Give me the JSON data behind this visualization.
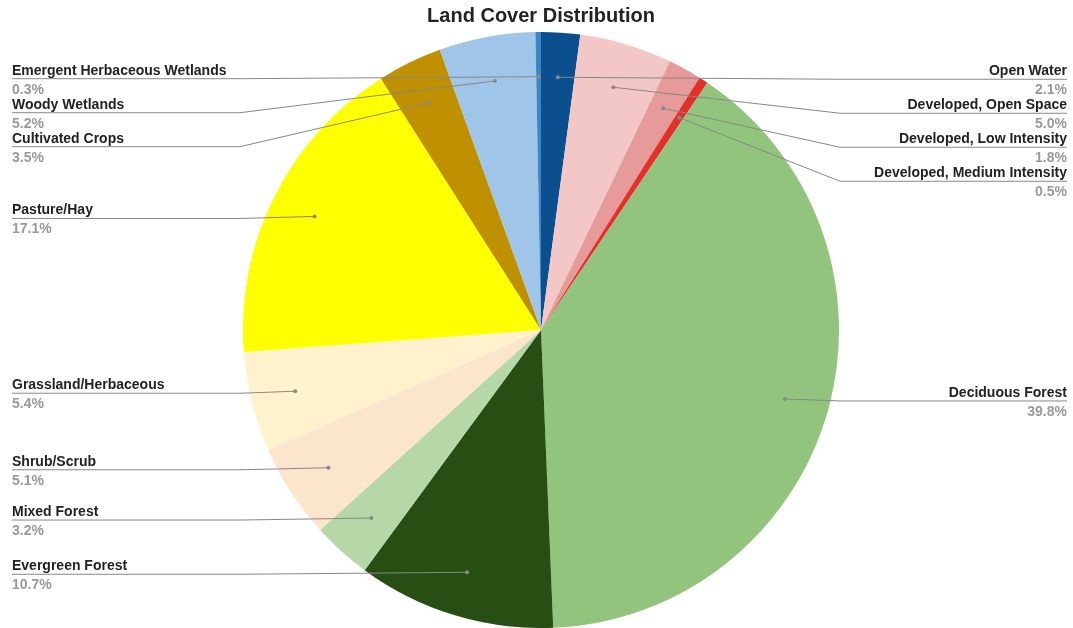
{
  "chart_data": {
    "type": "pie",
    "title": "Land Cover Distribution",
    "categories": [
      "Open Water",
      "Developed, Open Space",
      "Developed, Low Intensity",
      "Developed, Medium Intensity",
      "Deciduous Forest",
      "Evergreen Forest",
      "Mixed Forest",
      "Shrub/Scrub",
      "Grassland/Herbaceous",
      "Pasture/Hay",
      "Cultivated Crops",
      "Woody Wetlands",
      "Emergent Herbaceous Wetlands"
    ],
    "values": [
      2.1,
      5.0,
      1.8,
      0.5,
      39.8,
      10.7,
      3.2,
      5.1,
      5.4,
      17.1,
      3.5,
      5.2,
      0.3
    ],
    "value_labels": [
      "2.1%",
      "5.0%",
      "1.8%",
      "0.5%",
      "39.8%",
      "10.7%",
      "3.2%",
      "5.1%",
      "5.4%",
      "17.1%",
      "3.5%",
      "5.2%",
      "0.3%"
    ],
    "colors": [
      "#0b4f8f",
      "#f4c7c7",
      "#e79a9a",
      "#e3302b",
      "#93c47d",
      "#274e13",
      "#b6d7a8",
      "#fce5cd",
      "#fff2cc",
      "#ffff00",
      "#bf9000",
      "#9fc5e8",
      "#3d85c6"
    ],
    "legend": false
  }
}
